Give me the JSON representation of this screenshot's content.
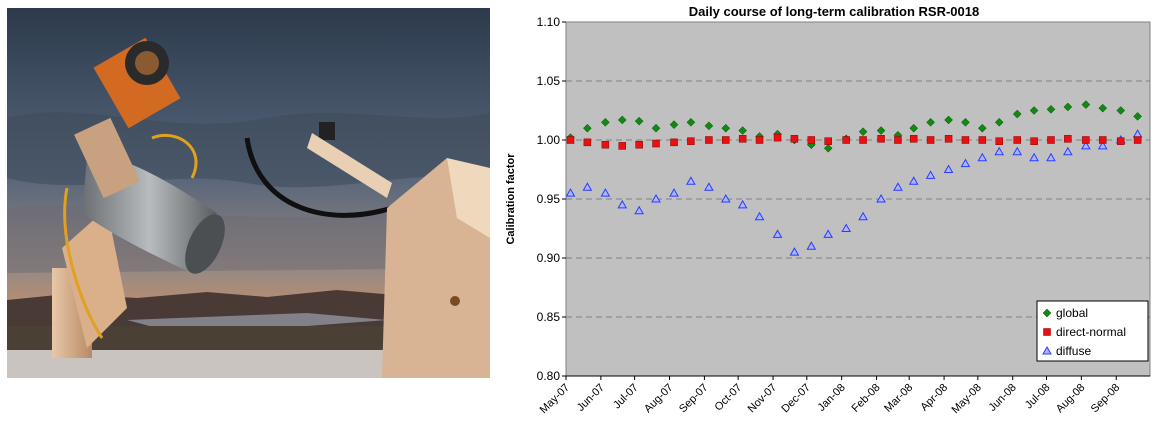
{
  "chart_data": {
    "type": "scatter",
    "title": "Daily course of long-term calibration RSR-0018",
    "xlabel": "",
    "ylabel": "Calibration factor",
    "categories": [
      "May-07",
      "Jun-07",
      "Jul-07",
      "Aug-07",
      "Sep-07",
      "Oct-07",
      "Nov-07",
      "Dec-07",
      "Jan-08",
      "Feb-08",
      "Mar-08",
      "Apr-08",
      "May-08",
      "Jun-08",
      "Jul-08",
      "Aug-08",
      "Sep-08"
    ],
    "xlim": [
      "2007-05-01",
      "2008-10-01"
    ],
    "ylim": [
      0.8,
      1.1
    ],
    "yticks": [
      "0.80",
      "0.85",
      "0.90",
      "0.95",
      "1.00",
      "1.05",
      "1.10"
    ],
    "grid": "horizontal dashed",
    "legend_position": "bottom-right",
    "colors": {
      "global": "#108a10",
      "direct-normal": "#e81010",
      "diffuse": "#2a3cff",
      "plot_bg": "#c0c0c0"
    },
    "series": [
      {
        "name": "global",
        "marker": "diamond",
        "x": [
          "2007-05-05",
          "2007-05-20",
          "2007-06-05",
          "2007-06-20",
          "2007-07-05",
          "2007-07-20",
          "2007-08-05",
          "2007-08-20",
          "2007-09-05",
          "2007-09-20",
          "2007-10-05",
          "2007-10-20",
          "2007-11-05",
          "2007-11-20",
          "2007-12-05",
          "2007-12-20",
          "2008-01-05",
          "2008-01-20",
          "2008-02-05",
          "2008-02-20",
          "2008-03-05",
          "2008-03-20",
          "2008-04-05",
          "2008-04-20",
          "2008-05-05",
          "2008-05-20",
          "2008-06-05",
          "2008-06-20",
          "2008-07-05",
          "2008-07-20",
          "2008-08-05",
          "2008-08-20",
          "2008-09-05",
          "2008-09-20"
        ],
        "y": [
          1.002,
          1.01,
          1.015,
          1.017,
          1.016,
          1.01,
          1.013,
          1.015,
          1.012,
          1.01,
          1.008,
          1.003,
          1.005,
          1.0,
          0.996,
          0.993,
          1.001,
          1.007,
          1.008,
          1.004,
          1.01,
          1.015,
          1.017,
          1.015,
          1.01,
          1.015,
          1.022,
          1.025,
          1.026,
          1.028,
          1.03,
          1.027,
          1.025,
          1.02
        ]
      },
      {
        "name": "direct-normal",
        "marker": "square",
        "x": [
          "2007-05-05",
          "2007-05-20",
          "2007-06-05",
          "2007-06-20",
          "2007-07-05",
          "2007-07-20",
          "2007-08-05",
          "2007-08-20",
          "2007-09-05",
          "2007-09-20",
          "2007-10-05",
          "2007-10-20",
          "2007-11-05",
          "2007-11-20",
          "2007-12-05",
          "2007-12-20",
          "2008-01-05",
          "2008-01-20",
          "2008-02-05",
          "2008-02-20",
          "2008-03-05",
          "2008-03-20",
          "2008-04-05",
          "2008-04-20",
          "2008-05-05",
          "2008-05-20",
          "2008-06-05",
          "2008-06-20",
          "2008-07-05",
          "2008-07-20",
          "2008-08-05",
          "2008-08-20",
          "2008-09-05",
          "2008-09-20"
        ],
        "y": [
          1.0,
          0.998,
          0.996,
          0.995,
          0.996,
          0.997,
          0.998,
          0.999,
          1.0,
          1.0,
          1.001,
          1.0,
          1.002,
          1.001,
          1.0,
          0.999,
          1.0,
          1.0,
          1.001,
          1.0,
          1.001,
          1.0,
          1.001,
          1.0,
          1.0,
          0.999,
          1.0,
          0.999,
          1.0,
          1.001,
          1.0,
          1.0,
          0.999,
          1.0
        ]
      },
      {
        "name": "diffuse",
        "marker": "triangle",
        "x": [
          "2007-05-05",
          "2007-05-20",
          "2007-06-05",
          "2007-06-20",
          "2007-07-05",
          "2007-07-20",
          "2007-08-05",
          "2007-08-20",
          "2007-09-05",
          "2007-09-20",
          "2007-10-05",
          "2007-10-20",
          "2007-11-05",
          "2007-11-20",
          "2007-12-05",
          "2007-12-20",
          "2008-01-05",
          "2008-01-20",
          "2008-02-05",
          "2008-02-20",
          "2008-03-05",
          "2008-03-20",
          "2008-04-05",
          "2008-04-20",
          "2008-05-05",
          "2008-05-20",
          "2008-06-05",
          "2008-06-20",
          "2008-07-05",
          "2008-07-20",
          "2008-08-05",
          "2008-08-20",
          "2008-09-05",
          "2008-09-20"
        ],
        "y": [
          0.955,
          0.96,
          0.955,
          0.945,
          0.94,
          0.95,
          0.955,
          0.965,
          0.96,
          0.95,
          0.945,
          0.935,
          0.92,
          0.905,
          0.91,
          0.92,
          0.925,
          0.935,
          0.95,
          0.96,
          0.965,
          0.97,
          0.975,
          0.98,
          0.985,
          0.99,
          0.99,
          0.985,
          0.985,
          0.99,
          0.995,
          0.995,
          1.0,
          1.005
        ]
      }
    ]
  }
}
